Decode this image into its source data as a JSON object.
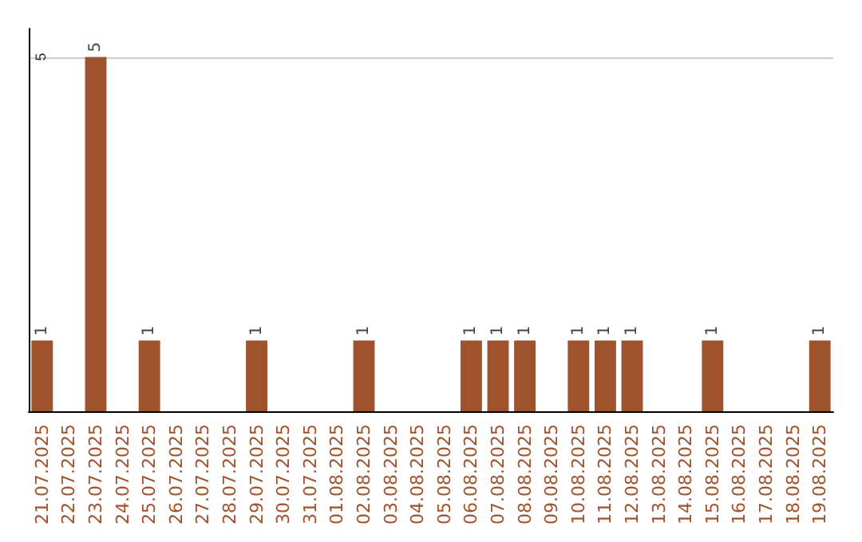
{
  "chart_data": {
    "type": "bar",
    "categories": [
      "21.07.2025",
      "22.07.2025",
      "23.07.2025",
      "24.07.2025",
      "25.07.2025",
      "26.07.2025",
      "27.07.2025",
      "28.07.2025",
      "29.07.2025",
      "30.07.2025",
      "31.07.2025",
      "01.08.2025",
      "02.08.2025",
      "03.08.2025",
      "04.08.2025",
      "05.08.2025",
      "06.08.2025",
      "07.08.2025",
      "08.08.2025",
      "09.08.2025",
      "10.08.2025",
      "11.08.2025",
      "12.08.2025",
      "13.08.2025",
      "14.08.2025",
      "15.08.2025",
      "16.08.2025",
      "17.08.2025",
      "18.08.2025",
      "19.08.2025"
    ],
    "values": [
      1,
      0,
      5,
      0,
      1,
      0,
      0,
      0,
      1,
      0,
      0,
      0,
      1,
      0,
      0,
      0,
      1,
      1,
      1,
      0,
      1,
      1,
      1,
      0,
      0,
      1,
      0,
      0,
      0,
      1
    ],
    "value_labels": [
      "1",
      null,
      "5",
      null,
      "1",
      null,
      null,
      null,
      "1",
      null,
      null,
      null,
      "1",
      null,
      null,
      null,
      "1",
      "1",
      "1",
      null,
      "1",
      "1",
      "1",
      null,
      null,
      "1",
      null,
      null,
      null,
      "1"
    ],
    "color": "#a0522d",
    "ylim": [
      0,
      5.4
    ],
    "yticks": [
      5
    ],
    "grid": "y"
  }
}
